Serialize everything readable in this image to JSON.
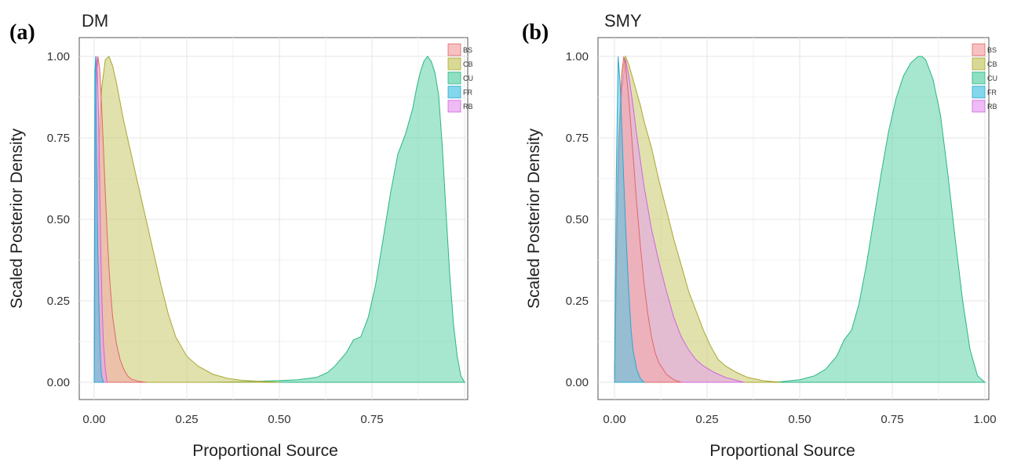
{
  "panels": [
    {
      "letter": "(a)",
      "title": "DM"
    },
    {
      "letter": "(b)",
      "title": "SMY"
    }
  ],
  "colors": {
    "BS": "#f4a7a8",
    "CB": "#c9c96a",
    "CU": "#5fd3a8",
    "FR": "#4fc6e3",
    "RB": "#e89ef0",
    "BS_line": "#e06666",
    "CB_line": "#a8a830",
    "CU_line": "#2bb583",
    "FR_line": "#2aa8cf",
    "RB_line": "#cc66dd"
  },
  "chart_data": [
    {
      "type": "area",
      "title": "DM",
      "xlabel": "Proportional Source",
      "ylabel": "Scaled Posterior Density",
      "xlim": [
        0,
        1
      ],
      "ylim": [
        0,
        1
      ],
      "xticks": [
        "0.00",
        "0.25",
        "0.50",
        "0.75",
        ""
      ],
      "yticks": [
        "0.00",
        "0.25",
        "0.50",
        "0.75",
        "1.00"
      ],
      "grid": true,
      "legend": "top-right",
      "series": [
        {
          "name": "CU",
          "x": [
            0.3,
            0.4,
            0.5,
            0.55,
            0.6,
            0.63,
            0.65,
            0.68,
            0.7,
            0.72,
            0.74,
            0.76,
            0.78,
            0.8,
            0.82,
            0.84,
            0.86,
            0.87,
            0.88,
            0.89,
            0.9,
            0.91,
            0.92,
            0.93,
            0.94,
            0.95,
            0.96,
            0.97,
            0.98,
            0.99,
            1.0
          ],
          "y": [
            0,
            0.002,
            0.005,
            0.008,
            0.015,
            0.03,
            0.05,
            0.09,
            0.13,
            0.14,
            0.2,
            0.3,
            0.44,
            0.58,
            0.7,
            0.76,
            0.84,
            0.9,
            0.95,
            0.985,
            1.0,
            0.985,
            0.95,
            0.88,
            0.72,
            0.52,
            0.33,
            0.18,
            0.08,
            0.02,
            0
          ]
        },
        {
          "name": "CB",
          "x": [
            0,
            0.01,
            0.02,
            0.03,
            0.04,
            0.05,
            0.06,
            0.07,
            0.08,
            0.09,
            0.1,
            0.12,
            0.14,
            0.16,
            0.18,
            0.2,
            0.22,
            0.25,
            0.28,
            0.32,
            0.36,
            0.4,
            0.45,
            0.5
          ],
          "y": [
            0,
            0.65,
            0.9,
            0.99,
            1.0,
            0.97,
            0.92,
            0.86,
            0.8,
            0.75,
            0.7,
            0.6,
            0.5,
            0.4,
            0.3,
            0.21,
            0.14,
            0.08,
            0.05,
            0.025,
            0.012,
            0.006,
            0.003,
            0
          ]
        },
        {
          "name": "BS",
          "x": [
            0,
            0.005,
            0.01,
            0.015,
            0.02,
            0.025,
            0.03,
            0.035,
            0.04,
            0.045,
            0.05,
            0.06,
            0.07,
            0.08,
            0.09,
            0.1,
            0.12,
            0.14
          ],
          "y": [
            0,
            0.9,
            1.0,
            0.96,
            0.85,
            0.72,
            0.58,
            0.46,
            0.35,
            0.27,
            0.2,
            0.12,
            0.07,
            0.04,
            0.02,
            0.01,
            0.003,
            0
          ]
        },
        {
          "name": "RB",
          "x": [
            0,
            0.003,
            0.006,
            0.009,
            0.012,
            0.015,
            0.018,
            0.021,
            0.025,
            0.03,
            0.035
          ],
          "y": [
            0,
            0.8,
            1.0,
            0.95,
            0.8,
            0.6,
            0.4,
            0.25,
            0.12,
            0.04,
            0
          ]
        },
        {
          "name": "FR",
          "x": [
            0,
            0.002,
            0.004,
            0.006,
            0.008,
            0.01,
            0.012,
            0.014,
            0.016,
            0.018,
            0.02,
            0.025
          ],
          "y": [
            0,
            0.95,
            1.0,
            0.75,
            0.55,
            0.4,
            0.28,
            0.18,
            0.1,
            0.05,
            0.02,
            0
          ]
        }
      ]
    },
    {
      "type": "area",
      "title": "SMY",
      "xlabel": "Proportional Source",
      "ylabel": "Scaled Posterior Density",
      "xlim": [
        0,
        1
      ],
      "ylim": [
        0,
        1
      ],
      "xticks": [
        "0.00",
        "0.25",
        "0.50",
        "0.75",
        "1.00"
      ],
      "yticks": [
        "0.00",
        "0.25",
        "0.50",
        "0.75",
        "1.00"
      ],
      "grid": true,
      "legend": "top-right",
      "series": [
        {
          "name": "CU",
          "x": [
            0.4,
            0.45,
            0.5,
            0.54,
            0.57,
            0.6,
            0.62,
            0.64,
            0.66,
            0.68,
            0.7,
            0.72,
            0.74,
            0.76,
            0.78,
            0.8,
            0.82,
            0.83,
            0.84,
            0.86,
            0.88,
            0.9,
            0.92,
            0.94,
            0.96,
            0.98,
            1.0
          ],
          "y": [
            0,
            0.002,
            0.008,
            0.02,
            0.04,
            0.08,
            0.13,
            0.16,
            0.24,
            0.36,
            0.5,
            0.64,
            0.77,
            0.87,
            0.94,
            0.98,
            1.0,
            1.0,
            0.99,
            0.93,
            0.82,
            0.64,
            0.44,
            0.25,
            0.1,
            0.02,
            0
          ]
        },
        {
          "name": "CB",
          "x": [
            0,
            0.01,
            0.02,
            0.03,
            0.04,
            0.05,
            0.06,
            0.07,
            0.08,
            0.1,
            0.12,
            0.14,
            0.16,
            0.18,
            0.2,
            0.22,
            0.24,
            0.26,
            0.28,
            0.3,
            0.33,
            0.36,
            0.4,
            0.45
          ],
          "y": [
            0,
            0.7,
            0.95,
            1.0,
            0.97,
            0.93,
            0.89,
            0.85,
            0.8,
            0.72,
            0.62,
            0.53,
            0.44,
            0.36,
            0.28,
            0.22,
            0.16,
            0.11,
            0.07,
            0.05,
            0.03,
            0.015,
            0.005,
            0
          ]
        },
        {
          "name": "RB",
          "x": [
            0,
            0.01,
            0.02,
            0.03,
            0.04,
            0.05,
            0.06,
            0.08,
            0.1,
            0.12,
            0.14,
            0.16,
            0.18,
            0.2,
            0.22,
            0.24,
            0.27,
            0.3,
            0.35
          ],
          "y": [
            0,
            0.6,
            0.9,
            0.99,
            0.93,
            0.85,
            0.76,
            0.6,
            0.47,
            0.37,
            0.28,
            0.2,
            0.14,
            0.1,
            0.07,
            0.05,
            0.03,
            0.015,
            0
          ]
        },
        {
          "name": "BS",
          "x": [
            0,
            0.01,
            0.02,
            0.025,
            0.03,
            0.04,
            0.05,
            0.06,
            0.07,
            0.08,
            0.09,
            0.1,
            0.11,
            0.12,
            0.14,
            0.16,
            0.18
          ],
          "y": [
            0,
            0.7,
            0.95,
            1.0,
            0.97,
            0.85,
            0.7,
            0.55,
            0.42,
            0.3,
            0.21,
            0.14,
            0.09,
            0.06,
            0.025,
            0.008,
            0
          ]
        },
        {
          "name": "FR",
          "x": [
            0,
            0.005,
            0.01,
            0.015,
            0.02,
            0.025,
            0.03,
            0.035,
            0.04,
            0.045,
            0.05,
            0.06,
            0.07,
            0.08
          ],
          "y": [
            0,
            0.65,
            1.0,
            0.92,
            0.78,
            0.62,
            0.48,
            0.36,
            0.25,
            0.16,
            0.1,
            0.04,
            0.012,
            0
          ]
        }
      ]
    }
  ]
}
